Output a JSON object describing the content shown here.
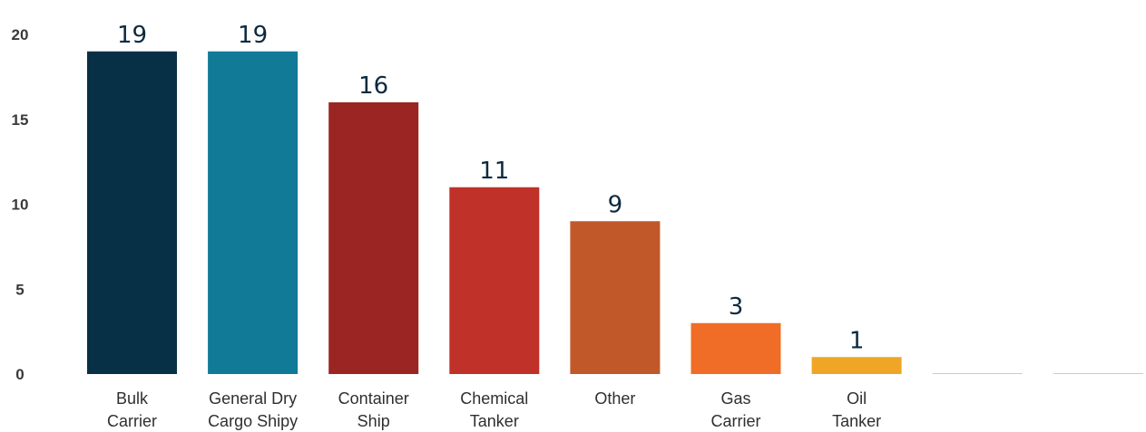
{
  "chart_data": {
    "type": "bar",
    "title": "",
    "xlabel": "",
    "ylabel": "",
    "ylim": [
      0,
      20
    ],
    "yticks": [
      0,
      5,
      10,
      15,
      20
    ],
    "grid": false,
    "legend": "none",
    "categories": [
      [
        "Bulk",
        "Carrier"
      ],
      [
        "General Dry",
        "Cargo Shipy"
      ],
      [
        "Container",
        "Ship"
      ],
      [
        "Chemical",
        "Tanker"
      ],
      [
        "Other"
      ],
      [
        "Gas",
        "Carrier"
      ],
      [
        "Oil",
        "Tanker"
      ],
      [],
      []
    ],
    "values": [
      19,
      19,
      16,
      11,
      9,
      3,
      1,
      0,
      0
    ],
    "data_labels": [
      "19",
      "19",
      "16",
      "11",
      "9",
      "3",
      "1",
      "",
      ""
    ],
    "colors": [
      "#072f46",
      "#117a97",
      "#9b2522",
      "#c03129",
      "#c1582a",
      "#ef6d26",
      "#efa526",
      "#cccccc",
      "#cccccc"
    ]
  }
}
